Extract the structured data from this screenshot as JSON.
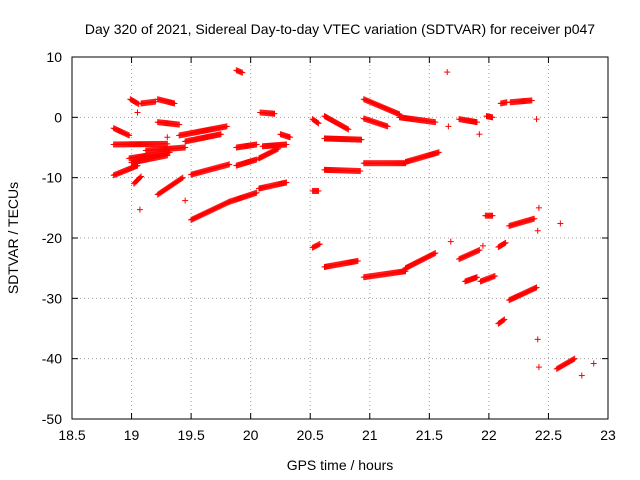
{
  "chart_data": {
    "type": "scatter",
    "title": "Day 320 of 2021, Sidereal Day-to-day VTEC variation (SDTVAR) for receiver p047",
    "xlabel": "GPS time / hours",
    "ylabel": "SDTVAR / TECUs",
    "xlim": [
      18.5,
      23
    ],
    "ylim": [
      -50,
      10
    ],
    "xticks": [
      18.5,
      19,
      19.5,
      20,
      20.5,
      21,
      21.5,
      22,
      22.5,
      23
    ],
    "xtick_labels": [
      "18.5",
      "19",
      "19.5",
      "20",
      "20.5",
      "21",
      "21.5",
      "22",
      "22.5",
      "23"
    ],
    "yticks": [
      -50,
      -40,
      -30,
      -20,
      -10,
      0,
      10
    ],
    "ytick_labels": [
      "-50",
      "-40",
      "-30",
      "-20",
      "-10",
      "0",
      "10"
    ],
    "grid": true,
    "marker": "+",
    "color": "#ff0000",
    "series": [
      {
        "name": "segments",
        "segments": [
          {
            "t0": 18.85,
            "t1": 19.05,
            "v0": -9.6,
            "v1": -8.0
          },
          {
            "t0": 18.85,
            "t1": 19.3,
            "v0": -4.5,
            "v1": -4.4
          },
          {
            "t0": 18.85,
            "t1": 18.98,
            "v0": -1.8,
            "v1": -3.0
          },
          {
            "t0": 18.98,
            "t1": 19.32,
            "v0": -6.8,
            "v1": -5.8
          },
          {
            "t0": 19.0,
            "t1": 19.3,
            "v0": -7.5,
            "v1": -6.3
          },
          {
            "t0": 19.12,
            "t1": 19.45,
            "v0": -5.5,
            "v1": -5.0
          },
          {
            "t0": 18.99,
            "t1": 19.06,
            "v0": 3.0,
            "v1": 2.2
          },
          {
            "t0": 19.08,
            "t1": 19.2,
            "v0": 2.3,
            "v1": 2.6
          },
          {
            "t0": 19.22,
            "t1": 19.36,
            "v0": 3.0,
            "v1": 2.3
          },
          {
            "t0": 19.22,
            "t1": 19.4,
            "v0": -0.8,
            "v1": -1.2
          },
          {
            "t0": 19.4,
            "t1": 19.8,
            "v0": -3.0,
            "v1": -1.5
          },
          {
            "t0": 19.45,
            "t1": 19.75,
            "v0": -4.0,
            "v1": -2.8
          },
          {
            "t0": 19.5,
            "t1": 19.82,
            "v0": -9.5,
            "v1": -7.8
          },
          {
            "t0": 19.02,
            "t1": 19.08,
            "v0": -11.0,
            "v1": -9.8
          },
          {
            "t0": 19.22,
            "t1": 19.43,
            "v0": -12.8,
            "v1": -10.0
          },
          {
            "t0": 19.5,
            "t1": 19.82,
            "v0": -17.0,
            "v1": -14.0
          },
          {
            "t0": 19.82,
            "t1": 20.05,
            "v0": -14.0,
            "v1": -12.5
          },
          {
            "t0": 20.07,
            "t1": 20.3,
            "v0": -11.8,
            "v1": -10.8
          },
          {
            "t0": 19.88,
            "t1": 20.05,
            "v0": -8.0,
            "v1": -7.0
          },
          {
            "t0": 20.07,
            "t1": 20.23,
            "v0": -6.8,
            "v1": -5.2
          },
          {
            "t0": 19.88,
            "t1": 20.05,
            "v0": -5.0,
            "v1": -4.5
          },
          {
            "t0": 20.1,
            "t1": 20.3,
            "v0": -4.8,
            "v1": -4.5
          },
          {
            "t0": 20.25,
            "t1": 20.33,
            "v0": -2.8,
            "v1": -3.3
          },
          {
            "t0": 20.08,
            "t1": 20.2,
            "v0": 0.8,
            "v1": 0.6
          },
          {
            "t0": 19.88,
            "t1": 19.93,
            "v0": 7.8,
            "v1": 7.4
          },
          {
            "t0": 20.52,
            "t1": 20.57,
            "v0": -0.3,
            "v1": -1.0
          },
          {
            "t0": 20.62,
            "t1": 20.82,
            "v0": 0.2,
            "v1": -2.0
          },
          {
            "t0": 20.62,
            "t1": 20.93,
            "v0": -3.5,
            "v1": -3.7
          },
          {
            "t0": 20.62,
            "t1": 20.92,
            "v0": -8.7,
            "v1": -8.9
          },
          {
            "t0": 20.52,
            "t1": 20.57,
            "v0": -12.2,
            "v1": -12.2
          },
          {
            "t0": 20.52,
            "t1": 20.58,
            "v0": -21.6,
            "v1": -21.0
          },
          {
            "t0": 20.62,
            "t1": 20.9,
            "v0": -24.8,
            "v1": -23.8
          },
          {
            "t0": 20.95,
            "t1": 21.3,
            "v0": -26.5,
            "v1": -25.5
          },
          {
            "t0": 21.3,
            "t1": 21.55,
            "v0": -25.0,
            "v1": -22.5
          },
          {
            "t0": 20.95,
            "t1": 21.25,
            "v0": 3.0,
            "v1": 0.5
          },
          {
            "t0": 21.25,
            "t1": 21.55,
            "v0": 0.0,
            "v1": -0.8
          },
          {
            "t0": 20.95,
            "t1": 21.15,
            "v0": -0.2,
            "v1": -1.5
          },
          {
            "t0": 20.95,
            "t1": 21.3,
            "v0": -7.6,
            "v1": -7.6
          },
          {
            "t0": 21.3,
            "t1": 21.58,
            "v0": -7.4,
            "v1": -5.8
          },
          {
            "t0": 21.75,
            "t1": 21.92,
            "v0": -23.5,
            "v1": -22.0
          },
          {
            "t0": 21.8,
            "t1": 21.9,
            "v0": -27.2,
            "v1": -26.5
          },
          {
            "t0": 21.93,
            "t1": 22.05,
            "v0": -27.2,
            "v1": -26.3
          },
          {
            "t0": 21.97,
            "t1": 22.03,
            "v0": -16.3,
            "v1": -16.3
          },
          {
            "t0": 22.08,
            "t1": 22.14,
            "v0": -21.5,
            "v1": -20.8
          },
          {
            "t0": 22.17,
            "t1": 22.38,
            "v0": -18.0,
            "v1": -16.8
          },
          {
            "t0": 22.08,
            "t1": 22.13,
            "v0": -34.2,
            "v1": -33.5
          },
          {
            "t0": 22.17,
            "t1": 22.4,
            "v0": -30.3,
            "v1": -28.2
          },
          {
            "t0": 22.57,
            "t1": 22.72,
            "v0": -41.7,
            "v1": -40.0
          },
          {
            "t0": 22.1,
            "t1": 22.15,
            "v0": 2.3,
            "v1": 2.5
          },
          {
            "t0": 22.18,
            "t1": 22.36,
            "v0": 2.5,
            "v1": 2.8
          },
          {
            "t0": 21.75,
            "t1": 21.9,
            "v0": -0.3,
            "v1": -0.8
          },
          {
            "t0": 21.98,
            "t1": 22.03,
            "v0": 0.2,
            "v1": 0.0
          }
        ]
      },
      {
        "name": "isolated",
        "points": [
          [
            21.65,
            7.5
          ],
          [
            21.66,
            -1.5
          ],
          [
            21.68,
            -20.6
          ],
          [
            21.92,
            -2.8
          ],
          [
            21.95,
            -21.3
          ],
          [
            22.42,
            -15.0
          ],
          [
            22.41,
            -18.8
          ],
          [
            22.41,
            -36.8
          ],
          [
            22.42,
            -41.4
          ],
          [
            22.4,
            -0.3
          ],
          [
            22.6,
            -17.6
          ],
          [
            22.78,
            -42.8
          ],
          [
            22.88,
            -40.8
          ],
          [
            19.07,
            -15.3
          ],
          [
            19.05,
            0.8
          ],
          [
            19.45,
            -13.8
          ],
          [
            19.3,
            -3.3
          ]
        ]
      }
    ]
  }
}
